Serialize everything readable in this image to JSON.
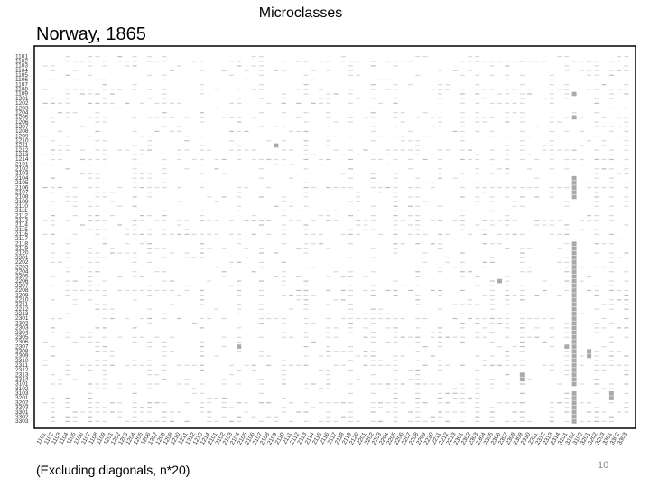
{
  "slide": {
    "heading": "Microclasses",
    "footnote": "(Excluding diagonals, n*20)",
    "page_number": "10"
  },
  "chart_data": {
    "type": "heatmap",
    "title": "Norway, 1865",
    "row_labels": [
      "1101",
      "1102",
      "1103",
      "1104",
      "1105",
      "1106",
      "1107",
      "1108",
      "1109",
      "1201",
      "1202",
      "1203",
      "1204",
      "1205",
      "1206",
      "1207",
      "1208",
      "1209",
      "1210",
      "1211",
      "1212",
      "1213",
      "1214",
      "2101",
      "2102",
      "2103",
      "2104",
      "2105",
      "2106",
      "2107",
      "2108",
      "2109",
      "2110",
      "2111",
      "2112",
      "2113",
      "2114",
      "2115",
      "2116",
      "2117",
      "2118",
      "2119",
      "2120",
      "2201",
      "2202",
      "2203",
      "2204",
      "2205",
      "2206",
      "2207",
      "2208",
      "2209",
      "2210",
      "2211",
      "2212",
      "2213",
      "2301",
      "2302",
      "2303",
      "2304",
      "2305",
      "2306",
      "2307",
      "2308",
      "2309",
      "2310",
      "2311",
      "2312",
      "2313",
      "2314",
      "3101",
      "3102",
      "3103",
      "3201",
      "3202",
      "3203",
      "3301",
      "3302",
      "3303"
    ],
    "col_labels": [
      "1101",
      "1102",
      "1103",
      "1104",
      "1105",
      "1106",
      "1107",
      "1108",
      "1109",
      "1201",
      "1202",
      "1203",
      "1204",
      "1205",
      "1206",
      "1207",
      "1208",
      "1209",
      "1210",
      "1211",
      "1212",
      "1213",
      "1214",
      "2101",
      "2102",
      "2103",
      "2104",
      "2105",
      "2106",
      "2107",
      "2108",
      "2109",
      "2110",
      "2111",
      "2112",
      "2113",
      "2114",
      "2115",
      "2116",
      "2117",
      "2118",
      "2119",
      "2120",
      "2201",
      "2202",
      "2203",
      "2204",
      "2205",
      "2206",
      "2207",
      "2208",
      "2209",
      "2210",
      "2211",
      "2212",
      "2213",
      "2301",
      "2302",
      "2303",
      "2304",
      "2305",
      "2306",
      "2307",
      "2308",
      "2309",
      "2310",
      "2311",
      "2312",
      "2313",
      "2314",
      "3101",
      "3102",
      "3103",
      "3201",
      "3202",
      "3203",
      "3301",
      "3302",
      "3303"
    ],
    "scale": "grayscale, darker = more frequent",
    "light_columns": [
      0,
      2,
      4,
      5,
      9,
      10,
      11,
      13,
      15,
      17,
      18,
      19,
      20,
      22,
      23,
      24,
      25,
      27,
      28,
      30,
      31,
      33,
      34,
      36,
      37,
      39,
      40,
      42,
      43,
      45,
      46,
      48,
      49,
      51,
      52,
      54,
      55,
      57,
      59,
      61,
      63,
      65,
      66,
      67,
      69,
      71,
      72,
      73,
      75,
      77
    ],
    "dense_rows": [
      1,
      7,
      10,
      13,
      20,
      22,
      28,
      35,
      38,
      45,
      50,
      56,
      60,
      66,
      70,
      74,
      76,
      78
    ],
    "highlight_cells": [
      {
        "row": 8,
        "col": 71
      },
      {
        "row": 13,
        "col": 71
      },
      {
        "row": 19,
        "col": 31
      },
      {
        "row": 26,
        "col": 71
      },
      {
        "row": 27,
        "col": 71
      },
      {
        "row": 28,
        "col": 71
      },
      {
        "row": 29,
        "col": 71
      },
      {
        "row": 30,
        "col": 71
      },
      {
        "row": 48,
        "col": 61
      },
      {
        "row": 62,
        "col": 26
      },
      {
        "row": 62,
        "col": 70
      },
      {
        "row": 63,
        "col": 73
      },
      {
        "row": 64,
        "col": 73
      },
      {
        "row": 68,
        "col": 64
      },
      {
        "row": 69,
        "col": 64
      },
      {
        "row": 72,
        "col": 76
      },
      {
        "row": 73,
        "col": 76
      }
    ],
    "highlight_spans": [
      {
        "col": 71,
        "row_from": 40,
        "row_to": 78
      }
    ]
  }
}
